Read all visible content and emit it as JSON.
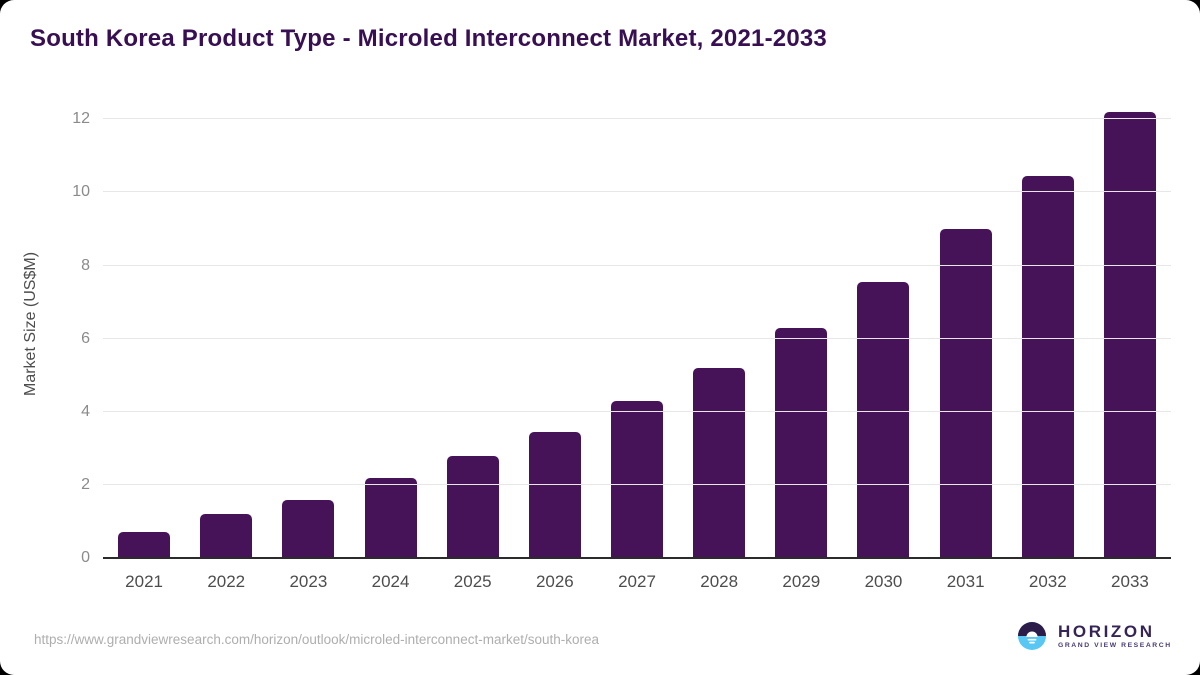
{
  "title": "South Korea Product Type - Microled Interconnect Market, 2021-2033",
  "chart_data": {
    "type": "bar",
    "categories": [
      "2021",
      "2022",
      "2023",
      "2024",
      "2025",
      "2026",
      "2027",
      "2028",
      "2029",
      "2030",
      "2031",
      "2032",
      "2033"
    ],
    "values": [
      0.7,
      1.2,
      1.6,
      2.2,
      2.8,
      3.45,
      4.3,
      5.2,
      6.3,
      7.55,
      9.0,
      10.45,
      12.2
    ],
    "title": "South Korea Product Type - Microled Interconnect Market, 2021-2033",
    "xlabel": "",
    "ylabel": "Market Size (US$M)",
    "ylim": [
      0,
      12.8
    ],
    "yticks": [
      0,
      2,
      4,
      6,
      8,
      10,
      12
    ],
    "grid": true,
    "legend": "none",
    "bar_color": "#461258"
  },
  "colors": {
    "title": "#380f52",
    "bar": "#461258",
    "gridline": "#e7e7e7",
    "axis_line": "#2b2b2b",
    "tick_label": "#8b8b8b",
    "x_label": "#4d4d4d",
    "logo_dark": "#2b1c4a",
    "logo_blue": "#58c7f3"
  },
  "footer": {
    "source_url": "https://www.grandviewresearch.com/horizon/outlook/microled-interconnect-market/south-korea",
    "logo": {
      "name": "HORIZON",
      "subtitle": "GRAND VIEW RESEARCH"
    }
  }
}
